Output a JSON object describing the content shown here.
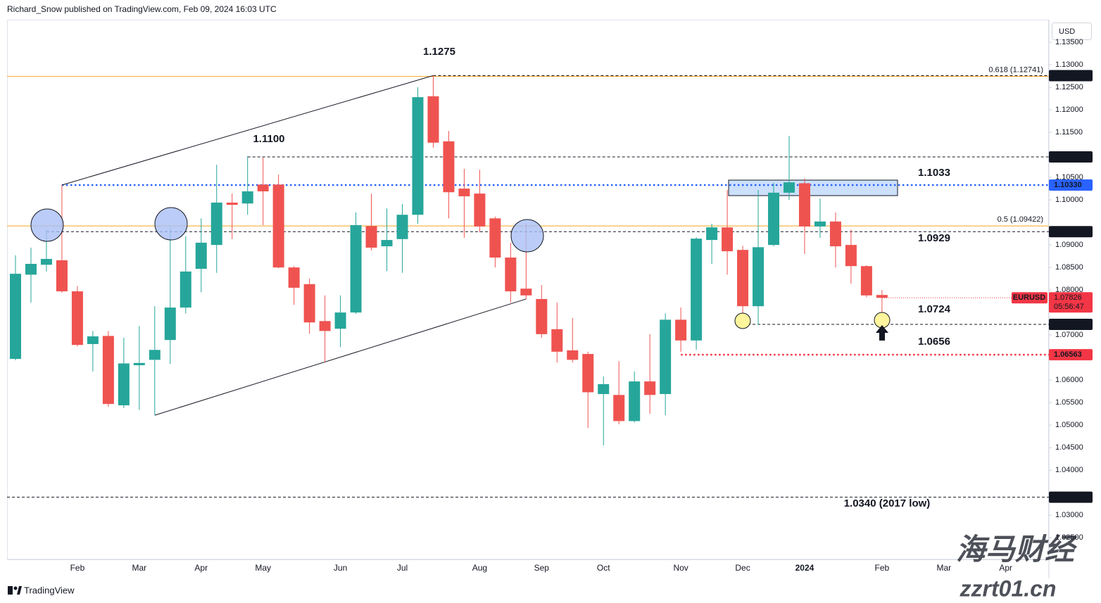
{
  "header": {
    "published": "Richard_Snow published on TradingView.com, Feb 09, 2024 16:03 UTC",
    "currency": "USD"
  },
  "footer": {
    "brand": "TradingView"
  },
  "watermark": {
    "name": "海马财经",
    "site": "zzrt01.cn"
  },
  "chart_data": {
    "type": "candlestick",
    "categories": [
      null,
      null,
      null,
      null,
      "Feb",
      null,
      null,
      null,
      "Mar",
      null,
      null,
      null,
      "Apr",
      null,
      null,
      null,
      "May",
      null,
      null,
      null,
      null,
      "Jun",
      null,
      null,
      null,
      "Jul",
      null,
      null,
      null,
      null,
      "Aug",
      null,
      null,
      null,
      "Sep",
      null,
      null,
      null,
      "Oct",
      null,
      null,
      null,
      null,
      "Nov",
      null,
      null,
      null,
      "Dec",
      null,
      null,
      null,
      "2024",
      null,
      null,
      null,
      null,
      "Feb",
      null,
      null,
      null,
      "Mar",
      null,
      null,
      null,
      "Apr",
      null,
      null
    ],
    "series": [
      {
        "name": "EURUSD",
        "up_color": "#26a69a",
        "down_color": "#ef5350",
        "open": [
          1.0647,
          1.0834,
          1.0856,
          1.0866,
          1.0797,
          1.068,
          1.0698,
          1.0544,
          1.0633,
          1.0645,
          1.0689,
          1.0761,
          1.0847,
          1.09,
          1.0994,
          1.0992,
          1.1034,
          1.1034,
          1.085,
          1.0813,
          1.0731,
          1.0714,
          1.075,
          1.0942,
          1.0897,
          1.0913,
          1.0967,
          1.123,
          1.113,
          1.1025,
          1.1014,
          1.0959,
          1.0872,
          1.0803,
          1.078,
          1.0713,
          1.0666,
          1.0658,
          1.0569,
          1.0567,
          1.0509,
          1.0597,
          1.0569,
          1.0734,
          1.0688,
          1.0911,
          1.0939,
          1.0889,
          1.0764,
          1.09,
          1.1016,
          1.1037,
          1.0941,
          1.0952,
          1.09,
          1.0853,
          1.0789,
          null,
          null,
          null,
          null,
          null,
          null,
          null,
          null,
          null,
          null
        ],
        "high": [
          1.0877,
          1.0894,
          1.0934,
          1.1033,
          1.0809,
          1.0709,
          1.0709,
          1.0694,
          1.072,
          1.0764,
          1.0938,
          1.0919,
          1.0959,
          1.1078,
          1.1014,
          1.1097,
          1.1094,
          1.1056,
          1.0853,
          1.0825,
          1.0788,
          1.0788,
          1.0972,
          1.1014,
          1.0981,
          1.0991,
          1.125,
          1.1276,
          1.1153,
          1.1069,
          1.1067,
          1.0963,
          1.0905,
          1.0947,
          1.0811,
          1.0772,
          1.0738,
          1.0663,
          1.0608,
          1.0642,
          1.0619,
          1.0702,
          1.0748,
          1.0761,
          1.0917,
          1.0947,
          1.1022,
          1.0898,
          1.1022,
          1.1038,
          1.1142,
          1.1048,
          1.1003,
          1.0972,
          1.0934,
          1.0855,
          1.08,
          null,
          null,
          null,
          null,
          null,
          null,
          null,
          null,
          null,
          null
        ],
        "low": [
          1.0644,
          1.0772,
          1.0841,
          1.0794,
          1.0675,
          1.0619,
          1.0541,
          1.0538,
          1.0534,
          1.0522,
          1.0636,
          1.0748,
          1.0795,
          1.0838,
          1.0913,
          1.0967,
          1.0944,
          1.0848,
          1.0767,
          1.0703,
          1.0639,
          1.0673,
          1.0747,
          1.0888,
          1.0842,
          1.0838,
          1.0947,
          1.1116,
          1.0959,
          1.0916,
          1.0928,
          1.085,
          1.0772,
          1.078,
          1.0694,
          1.0639,
          1.0639,
          1.0494,
          1.0455,
          1.0502,
          1.0506,
          1.0525,
          1.0522,
          1.0663,
          1.0667,
          1.0858,
          1.0834,
          1.0724,
          1.0723,
          1.0897,
          1.1,
          1.088,
          1.0916,
          1.085,
          1.0814,
          1.0784,
          1.0723,
          null,
          null,
          null,
          null,
          null,
          null,
          null,
          null,
          null,
          null
        ],
        "close": [
          1.0836,
          1.0858,
          1.0869,
          1.0797,
          1.0678,
          1.0697,
          1.0547,
          1.0637,
          1.0638,
          1.0667,
          1.0761,
          1.0841,
          1.0905,
          1.0994,
          1.0989,
          1.1019,
          1.1019,
          1.085,
          1.0805,
          1.0728,
          1.0709,
          1.075,
          1.0944,
          1.0894,
          1.0911,
          1.0967,
          1.1228,
          1.1127,
          1.1017,
          1.1008,
          1.0941,
          1.0872,
          1.0797,
          1.0788,
          1.0702,
          1.0663,
          1.0645,
          1.0573,
          1.0591,
          1.0509,
          1.0597,
          1.0567,
          1.0734,
          1.0688,
          1.0914,
          1.0939,
          1.0886,
          1.0764,
          1.0895,
          1.1016,
          1.1039,
          1.0941,
          1.0952,
          1.0897,
          1.0853,
          1.0788,
          1.07826,
          null,
          null,
          null,
          null,
          null,
          null,
          null,
          null,
          null,
          null
        ]
      }
    ],
    "ylim": [
      1.0202,
      1.14
    ],
    "yticks": [
      {
        "value": 1.135,
        "label": "1.13500"
      },
      {
        "value": 1.13,
        "label": "1.13000"
      },
      {
        "value": 1.125,
        "label": "1.12500"
      },
      {
        "value": 1.12,
        "label": "1.12000"
      },
      {
        "value": 1.115,
        "label": "1.11500"
      },
      {
        "value": 1.105,
        "label": "1.10500"
      },
      {
        "value": 1.1,
        "label": "1.10000"
      },
      {
        "value": 1.09,
        "label": "1.09000"
      },
      {
        "value": 1.085,
        "label": "1.08500"
      },
      {
        "value": 1.08,
        "label": "1.08000"
      },
      {
        "value": 1.07,
        "label": "1.07000"
      },
      {
        "value": 1.06,
        "label": "1.06000"
      },
      {
        "value": 1.055,
        "label": "1.05500"
      },
      {
        "value": 1.05,
        "label": "1.05000"
      },
      {
        "value": 1.045,
        "label": "1.04500"
      },
      {
        "value": 1.04,
        "label": "1.04000"
      },
      {
        "value": 1.03,
        "label": "1.03000"
      },
      {
        "value": 1.025,
        "label": "1.02500"
      }
    ],
    "grid": false,
    "levels": [
      {
        "value": 1.12758,
        "axis_label": "1.12758",
        "color": "#131722",
        "style": "dashed"
      },
      {
        "value": 1.12741,
        "label": "0.618 (1.12741)",
        "color": "#f5a623",
        "style": "solid"
      },
      {
        "value": 1.10955,
        "axis_label": "1.10955",
        "color": "#131722",
        "style": "dashed"
      },
      {
        "value": 1.1033,
        "axis_label": "1.10330",
        "color": "#2962ff",
        "style": "dotted"
      },
      {
        "value": 1.09422,
        "label": "0.5 (1.09422)",
        "color": "#f5a623",
        "style": "solid"
      },
      {
        "value": 1.09295,
        "axis_label": "1.09295",
        "color": "#131722",
        "style": "dashed"
      },
      {
        "value": 1.07236,
        "axis_label": "1.07236",
        "color": "#131722",
        "style": "dashed"
      },
      {
        "value": 1.06563,
        "axis_label": "1.06563",
        "color": "#f23645",
        "style": "dotted"
      },
      {
        "value": 1.034,
        "axis_label": "1.03400",
        "color": "#131722",
        "style": "dashed"
      }
    ],
    "annotations": [
      {
        "text": "1.1275",
        "color": "#131722"
      },
      {
        "text": "1.1100",
        "color": "#131722"
      },
      {
        "text": "1.1033",
        "color": "#5b8cff"
      },
      {
        "text": "1.0929",
        "color": "#131722"
      },
      {
        "text": "1.0724",
        "color": "#131722"
      },
      {
        "text": "1.0656",
        "color": "#f23645"
      },
      {
        "text": "1.0340 (2017 low)",
        "color": "#131722"
      }
    ],
    "last": {
      "price": 1.07826,
      "countdown": "05:56:47",
      "color": "#f23645"
    }
  }
}
